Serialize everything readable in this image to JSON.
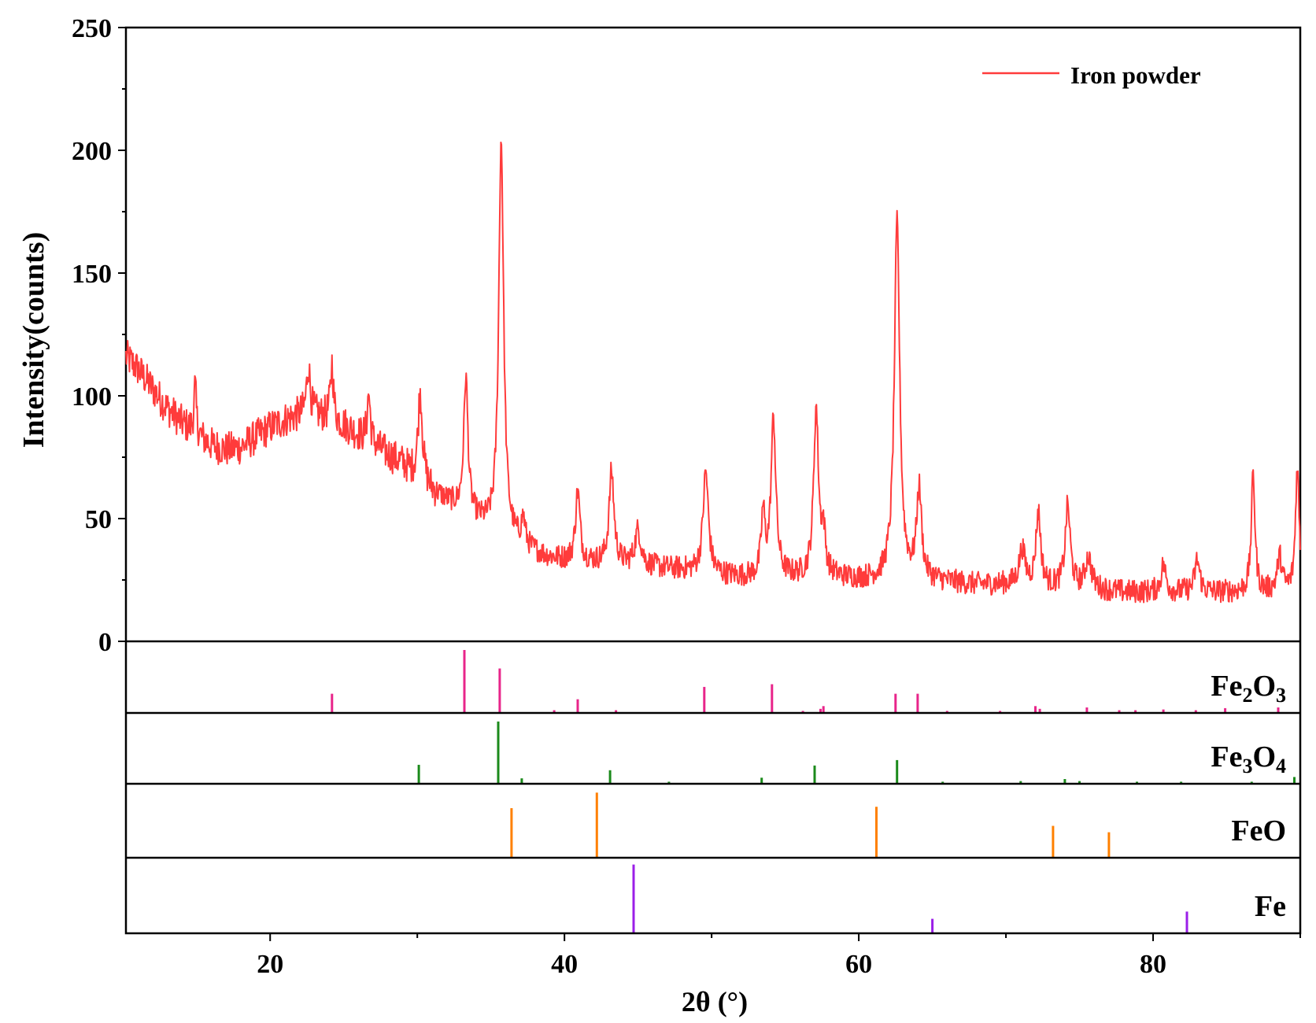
{
  "chart_data": {
    "type": "line",
    "xlabel": "2θ (°)",
    "ylabel": "Intensity(counts)",
    "xlim": [
      10.2,
      90
    ],
    "ylim": [
      0,
      250
    ],
    "x_ticks": [
      20,
      40,
      60,
      80
    ],
    "y_ticks": [
      0,
      50,
      100,
      150,
      200,
      250
    ],
    "x_tick_labels": [
      "20",
      "40",
      "60",
      "80"
    ],
    "y_tick_labels": [
      "0",
      "50",
      "100",
      "150",
      "200",
      "250"
    ],
    "legend": {
      "position": "top-right",
      "label": "Iron powder"
    },
    "series": [
      {
        "name": "Iron powder",
        "color": "#ff3b3b",
        "baseline": [
          [
            10.2,
            116
          ],
          [
            11,
            111
          ],
          [
            12,
            103
          ],
          [
            13,
            95
          ],
          [
            14,
            89
          ],
          [
            15,
            84
          ],
          [
            16,
            80
          ],
          [
            17,
            78
          ],
          [
            18,
            79
          ],
          [
            19,
            83
          ],
          [
            20,
            87
          ],
          [
            21,
            90
          ],
          [
            22,
            92
          ],
          [
            23,
            92
          ],
          [
            24,
            91
          ],
          [
            25,
            88
          ],
          [
            26,
            84
          ],
          [
            27,
            80
          ],
          [
            28,
            76
          ],
          [
            29,
            72
          ],
          [
            30,
            66
          ],
          [
            31,
            61
          ],
          [
            32,
            57
          ],
          [
            33,
            53
          ],
          [
            34,
            49
          ],
          [
            35,
            45
          ],
          [
            36,
            42
          ],
          [
            37,
            39
          ],
          [
            38,
            36
          ],
          [
            39,
            34
          ],
          [
            40,
            33
          ],
          [
            42,
            32
          ],
          [
            44,
            31
          ],
          [
            46,
            30
          ],
          [
            48,
            29
          ],
          [
            50,
            27
          ],
          [
            52,
            26
          ],
          [
            54,
            26
          ],
          [
            56,
            26
          ],
          [
            58,
            26
          ],
          [
            60,
            25
          ],
          [
            62,
            25
          ],
          [
            64,
            25
          ],
          [
            66,
            24
          ],
          [
            68,
            23
          ],
          [
            70,
            23
          ],
          [
            72,
            22
          ],
          [
            74,
            22
          ],
          [
            76,
            21
          ],
          [
            78,
            20
          ],
          [
            80,
            20
          ],
          [
            82,
            20
          ],
          [
            84,
            20
          ],
          [
            86,
            20
          ],
          [
            88,
            20
          ],
          [
            90,
            20
          ]
        ],
        "peaks": [
          {
            "x": 14.9,
            "height": 104,
            "width": 0.1
          },
          {
            "x": 22.6,
            "height": 112,
            "width": 0.15
          },
          {
            "x": 24.2,
            "height": 113,
            "width": 0.12
          },
          {
            "x": 26.7,
            "height": 101,
            "width": 0.12
          },
          {
            "x": 30.2,
            "height": 101,
            "width": 0.18
          },
          {
            "x": 33.3,
            "height": 107,
            "width": 0.17
          },
          {
            "x": 35.7,
            "height": 204,
            "width": 0.2
          },
          {
            "x": 37.2,
            "height": 49,
            "width": 0.15
          },
          {
            "x": 40.9,
            "height": 61,
            "width": 0.18
          },
          {
            "x": 43.2,
            "height": 69,
            "width": 0.2
          },
          {
            "x": 45.0,
            "height": 45,
            "width": 0.25
          },
          {
            "x": 49.6,
            "height": 69,
            "width": 0.22
          },
          {
            "x": 53.5,
            "height": 51,
            "width": 0.15
          },
          {
            "x": 54.2,
            "height": 90,
            "width": 0.2
          },
          {
            "x": 57.1,
            "height": 94,
            "width": 0.2
          },
          {
            "x": 57.6,
            "height": 42,
            "width": 0.15
          },
          {
            "x": 62.6,
            "height": 170,
            "width": 0.22
          },
          {
            "x": 64.1,
            "height": 61,
            "width": 0.2
          },
          {
            "x": 71.1,
            "height": 37,
            "width": 0.25
          },
          {
            "x": 72.2,
            "height": 52,
            "width": 0.2
          },
          {
            "x": 74.2,
            "height": 55,
            "width": 0.2
          },
          {
            "x": 75.6,
            "height": 34,
            "width": 0.25
          },
          {
            "x": 80.7,
            "height": 31,
            "width": 0.2
          },
          {
            "x": 83.0,
            "height": 33,
            "width": 0.2
          },
          {
            "x": 86.8,
            "height": 68,
            "width": 0.15
          },
          {
            "x": 88.6,
            "height": 34,
            "width": 0.2
          },
          {
            "x": 89.8,
            "height": 71,
            "width": 0.15
          }
        ],
        "noise_amplitude": 6
      }
    ],
    "reference_panels": [
      {
        "label_parts": [
          [
            "Fe",
            ""
          ],
          [
            "2",
            "sub"
          ],
          [
            "O",
            ""
          ],
          [
            "3",
            "sub"
          ]
        ],
        "color": "#e8258a",
        "lines": [
          [
            24.2,
            0.28
          ],
          [
            33.2,
            0.92
          ],
          [
            35.6,
            0.65
          ],
          [
            39.3,
            0.04
          ],
          [
            40.9,
            0.2
          ],
          [
            43.5,
            0.04
          ],
          [
            49.5,
            0.38
          ],
          [
            54.1,
            0.42
          ],
          [
            56.2,
            0.03
          ],
          [
            57.4,
            0.06
          ],
          [
            57.6,
            0.1
          ],
          [
            62.5,
            0.28
          ],
          [
            64.0,
            0.28
          ],
          [
            66.0,
            0.03
          ],
          [
            69.6,
            0.03
          ],
          [
            72.0,
            0.1
          ],
          [
            72.3,
            0.06
          ],
          [
            75.5,
            0.08
          ],
          [
            77.7,
            0.04
          ],
          [
            78.8,
            0.04
          ],
          [
            80.7,
            0.05
          ],
          [
            82.9,
            0.04
          ],
          [
            84.9,
            0.07
          ],
          [
            88.5,
            0.08
          ]
        ]
      },
      {
        "label_parts": [
          [
            "Fe",
            ""
          ],
          [
            "3",
            "sub"
          ],
          [
            "O",
            ""
          ],
          [
            "4",
            "sub"
          ]
        ],
        "color": "#1b8a1b",
        "lines": [
          [
            30.1,
            0.28
          ],
          [
            35.5,
            0.92
          ],
          [
            37.1,
            0.08
          ],
          [
            43.1,
            0.2
          ],
          [
            47.1,
            0.03
          ],
          [
            53.4,
            0.09
          ],
          [
            57.0,
            0.27
          ],
          [
            62.6,
            0.35
          ],
          [
            65.7,
            0.03
          ],
          [
            71.0,
            0.04
          ],
          [
            74.0,
            0.07
          ],
          [
            75.0,
            0.04
          ],
          [
            78.9,
            0.03
          ],
          [
            81.9,
            0.03
          ],
          [
            86.7,
            0.03
          ],
          [
            89.6,
            0.1
          ]
        ]
      },
      {
        "label_parts": [
          [
            "FeO",
            ""
          ]
        ],
        "color": "#ff8000",
        "lines": [
          [
            36.4,
            0.7
          ],
          [
            42.2,
            0.92
          ],
          [
            61.2,
            0.72
          ],
          [
            73.2,
            0.45
          ],
          [
            77.0,
            0.36
          ]
        ]
      },
      {
        "label_parts": [
          [
            "Fe",
            ""
          ]
        ],
        "color": "#9b1fe8",
        "lines": [
          [
            44.7,
            0.95
          ],
          [
            65.0,
            0.2
          ],
          [
            82.3,
            0.3
          ]
        ]
      }
    ]
  }
}
